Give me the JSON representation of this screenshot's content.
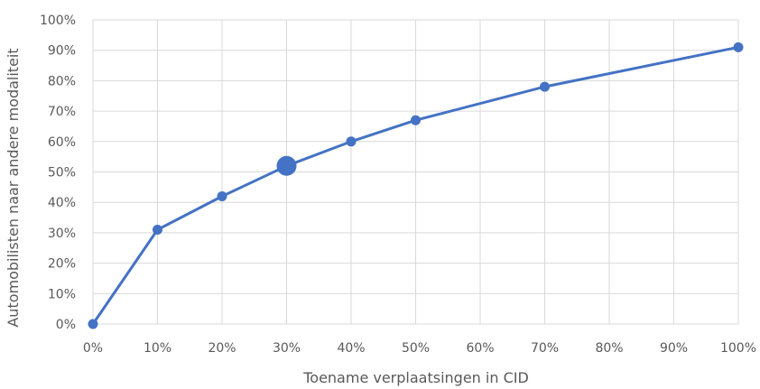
{
  "chart_data": {
    "type": "line",
    "title": "",
    "xlabel": "Toename verplaatsingen in CID",
    "ylabel": "Automobilisten naar andere modaliteit",
    "x_ticks": [
      "0%",
      "10%",
      "20%",
      "30%",
      "40%",
      "50%",
      "60%",
      "70%",
      "80%",
      "90%",
      "100%"
    ],
    "y_ticks": [
      "0%",
      "10%",
      "20%",
      "30%",
      "40%",
      "50%",
      "60%",
      "70%",
      "80%",
      "90%",
      "100%"
    ],
    "xlim": [
      0,
      100
    ],
    "ylim": [
      0,
      100
    ],
    "grid": true,
    "series": [
      {
        "x": [
          0,
          10,
          20,
          30,
          40,
          50,
          70,
          100
        ],
        "y": [
          0,
          31,
          42,
          52,
          60,
          67,
          78,
          91
        ],
        "highlight_x": 30
      }
    ],
    "colors": {
      "series": "#4472c4",
      "grid": "#d9d9d9",
      "text": "#595959"
    }
  }
}
